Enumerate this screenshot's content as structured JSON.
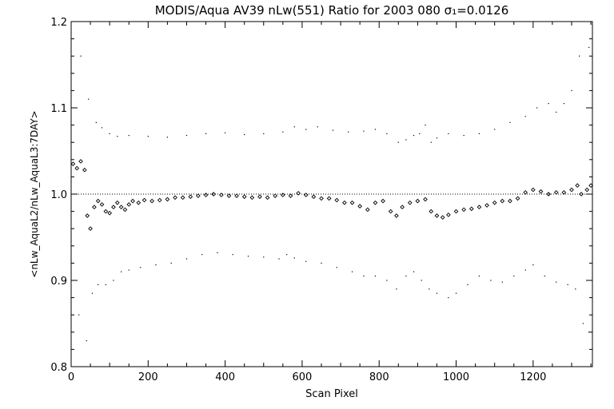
{
  "chart_data": {
    "type": "scatter",
    "title": "MODIS/Aqua AV39 nLw(551) Ratio for 2003 080 σ₁=0.0126",
    "xlabel": "Scan Pixel",
    "ylabel": "<nLw_AquaL2/nLw_AquaL3:7DAY>",
    "xlim": [
      0,
      1354
    ],
    "ylim": [
      0.8,
      1.2
    ],
    "xticks": [
      "0",
      "200",
      "400",
      "600",
      "800",
      "1000",
      "1200"
    ],
    "yticks": [
      "0.8",
      "0.9",
      "1.0",
      "1.1",
      "1.2"
    ],
    "reference_line": 1.0,
    "grid": false,
    "series": [
      {
        "role": "mean",
        "marker": "diamond",
        "points": [
          [
            5,
            1.035
          ],
          [
            15,
            1.03
          ],
          [
            25,
            1.038
          ],
          [
            35,
            1.028
          ],
          [
            42,
            0.975
          ],
          [
            50,
            0.96
          ],
          [
            60,
            0.985
          ],
          [
            70,
            0.992
          ],
          [
            80,
            0.988
          ],
          [
            90,
            0.98
          ],
          [
            100,
            0.978
          ],
          [
            110,
            0.985
          ],
          [
            120,
            0.99
          ],
          [
            130,
            0.985
          ],
          [
            140,
            0.982
          ],
          [
            150,
            0.988
          ],
          [
            160,
            0.992
          ],
          [
            175,
            0.99
          ],
          [
            190,
            0.993
          ],
          [
            210,
            0.992
          ],
          [
            230,
            0.993
          ],
          [
            250,
            0.994
          ],
          [
            270,
            0.996
          ],
          [
            290,
            0.996
          ],
          [
            310,
            0.997
          ],
          [
            330,
            0.998
          ],
          [
            350,
            0.999
          ],
          [
            370,
            1.0
          ],
          [
            390,
            0.999
          ],
          [
            410,
            0.998
          ],
          [
            430,
            0.998
          ],
          [
            450,
            0.997
          ],
          [
            470,
            0.996
          ],
          [
            490,
            0.997
          ],
          [
            510,
            0.996
          ],
          [
            530,
            0.998
          ],
          [
            550,
            0.999
          ],
          [
            570,
            0.998
          ],
          [
            590,
            1.001
          ],
          [
            610,
            0.999
          ],
          [
            630,
            0.997
          ],
          [
            650,
            0.995
          ],
          [
            670,
            0.995
          ],
          [
            690,
            0.993
          ],
          [
            710,
            0.99
          ],
          [
            730,
            0.99
          ],
          [
            750,
            0.986
          ],
          [
            770,
            0.982
          ],
          [
            790,
            0.99
          ],
          [
            810,
            0.992
          ],
          [
            830,
            0.98
          ],
          [
            845,
            0.975
          ],
          [
            860,
            0.985
          ],
          [
            880,
            0.99
          ],
          [
            900,
            0.992
          ],
          [
            920,
            0.994
          ],
          [
            935,
            0.98
          ],
          [
            950,
            0.975
          ],
          [
            965,
            0.973
          ],
          [
            980,
            0.976
          ],
          [
            1000,
            0.98
          ],
          [
            1020,
            0.982
          ],
          [
            1040,
            0.983
          ],
          [
            1060,
            0.985
          ],
          [
            1080,
            0.987
          ],
          [
            1100,
            0.99
          ],
          [
            1120,
            0.992
          ],
          [
            1140,
            0.992
          ],
          [
            1160,
            0.995
          ],
          [
            1180,
            1.002
          ],
          [
            1200,
            1.005
          ],
          [
            1220,
            1.003
          ],
          [
            1240,
            1.0
          ],
          [
            1260,
            1.002
          ],
          [
            1280,
            1.002
          ],
          [
            1300,
            1.005
          ],
          [
            1315,
            1.01
          ],
          [
            1325,
            1.0
          ],
          [
            1340,
            1.005
          ],
          [
            1350,
            1.01
          ]
        ]
      },
      {
        "role": "upper",
        "marker": "dot",
        "points": [
          [
            25,
            1.16
          ],
          [
            45,
            1.11
          ],
          [
            65,
            1.083
          ],
          [
            80,
            1.077
          ],
          [
            100,
            1.07
          ],
          [
            120,
            1.067
          ],
          [
            150,
            1.068
          ],
          [
            200,
            1.067
          ],
          [
            250,
            1.066
          ],
          [
            300,
            1.068
          ],
          [
            350,
            1.07
          ],
          [
            400,
            1.071
          ],
          [
            450,
            1.069
          ],
          [
            500,
            1.07
          ],
          [
            550,
            1.072
          ],
          [
            580,
            1.078
          ],
          [
            610,
            1.075
          ],
          [
            640,
            1.078
          ],
          [
            680,
            1.074
          ],
          [
            720,
            1.072
          ],
          [
            760,
            1.073
          ],
          [
            790,
            1.075
          ],
          [
            820,
            1.07
          ],
          [
            850,
            1.06
          ],
          [
            870,
            1.063
          ],
          [
            890,
            1.068
          ],
          [
            905,
            1.07
          ],
          [
            920,
            1.08
          ],
          [
            935,
            1.06
          ],
          [
            950,
            1.065
          ],
          [
            980,
            1.07
          ],
          [
            1020,
            1.068
          ],
          [
            1060,
            1.07
          ],
          [
            1100,
            1.075
          ],
          [
            1140,
            1.083
          ],
          [
            1180,
            1.09
          ],
          [
            1210,
            1.1
          ],
          [
            1240,
            1.105
          ],
          [
            1260,
            1.095
          ],
          [
            1280,
            1.105
          ],
          [
            1300,
            1.12
          ],
          [
            1320,
            1.16
          ],
          [
            1345,
            1.17
          ]
        ]
      },
      {
        "role": "lower",
        "marker": "dot",
        "points": [
          [
            20,
            0.86
          ],
          [
            40,
            0.83
          ],
          [
            55,
            0.885
          ],
          [
            70,
            0.895
          ],
          [
            90,
            0.895
          ],
          [
            110,
            0.9
          ],
          [
            130,
            0.91
          ],
          [
            150,
            0.912
          ],
          [
            180,
            0.915
          ],
          [
            220,
            0.918
          ],
          [
            260,
            0.92
          ],
          [
            300,
            0.925
          ],
          [
            340,
            0.93
          ],
          [
            380,
            0.932
          ],
          [
            420,
            0.93
          ],
          [
            460,
            0.928
          ],
          [
            500,
            0.927
          ],
          [
            540,
            0.925
          ],
          [
            560,
            0.93
          ],
          [
            580,
            0.926
          ],
          [
            610,
            0.922
          ],
          [
            650,
            0.92
          ],
          [
            690,
            0.915
          ],
          [
            730,
            0.91
          ],
          [
            760,
            0.905
          ],
          [
            790,
            0.905
          ],
          [
            820,
            0.9
          ],
          [
            845,
            0.89
          ],
          [
            870,
            0.905
          ],
          [
            890,
            0.91
          ],
          [
            910,
            0.9
          ],
          [
            930,
            0.89
          ],
          [
            950,
            0.885
          ],
          [
            980,
            0.88
          ],
          [
            1000,
            0.885
          ],
          [
            1030,
            0.895
          ],
          [
            1060,
            0.905
          ],
          [
            1090,
            0.9
          ],
          [
            1120,
            0.898
          ],
          [
            1150,
            0.905
          ],
          [
            1180,
            0.912
          ],
          [
            1200,
            0.918
          ],
          [
            1230,
            0.905
          ],
          [
            1260,
            0.898
          ],
          [
            1290,
            0.895
          ],
          [
            1310,
            0.89
          ],
          [
            1330,
            0.85
          ],
          [
            1345,
            0.84
          ]
        ]
      }
    ]
  }
}
